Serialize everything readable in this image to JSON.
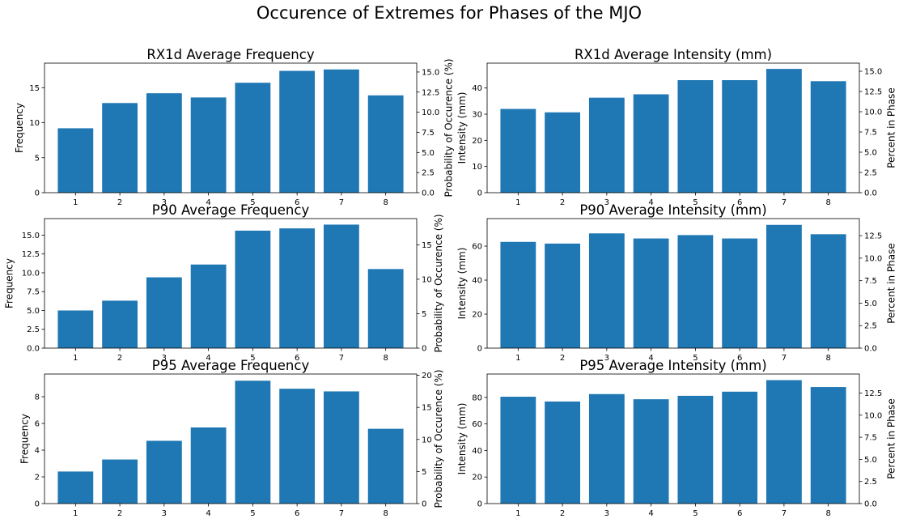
{
  "figure": {
    "title": "Occurence of Extremes for Phases of the MJO"
  },
  "colors": {
    "bar": "#1f77b4",
    "axis": "#000000",
    "background": "#ffffff"
  },
  "chart_data": [
    {
      "type": "bar",
      "title": "RX1d Average Frequency",
      "categories": [
        "1",
        "2",
        "3",
        "4",
        "5",
        "6",
        "7",
        "8"
      ],
      "values": [
        9.2,
        12.8,
        14.2,
        13.6,
        15.7,
        17.4,
        17.6,
        13.9
      ],
      "ylabel": "Frequency",
      "ylim": [
        0,
        18.5
      ],
      "yticks": [
        "0",
        "5",
        "10",
        "15"
      ],
      "y2label": "Probability of Occurence (%)",
      "y2lim": [
        0,
        16.1
      ],
      "y2ticks": [
        "0.0",
        "2.5",
        "5.0",
        "7.5",
        "10.0",
        "12.5",
        "15.0"
      ]
    },
    {
      "type": "bar",
      "title": "RX1d Average Intensity (mm)",
      "categories": [
        "1",
        "2",
        "3",
        "4",
        "5",
        "6",
        "7",
        "8"
      ],
      "values": [
        32.0,
        30.7,
        36.3,
        37.6,
        43.0,
        43.0,
        47.3,
        42.6
      ],
      "ylabel": "Intensity (mm)",
      "ylim": [
        0,
        49.5
      ],
      "yticks": [
        "0",
        "10",
        "20",
        "30",
        "40"
      ],
      "y2label": "Percent in Phase",
      "y2lim": [
        0,
        16.0
      ],
      "y2ticks": [
        "0.0",
        "2.5",
        "5.0",
        "7.5",
        "10.0",
        "12.5",
        "15.0"
      ]
    },
    {
      "type": "bar",
      "title": "P90 Average Frequency",
      "categories": [
        "1",
        "2",
        "3",
        "4",
        "5",
        "6",
        "7",
        "8"
      ],
      "values": [
        5.0,
        6.3,
        9.4,
        11.1,
        15.6,
        15.9,
        16.4,
        10.5
      ],
      "ylabel": "Frequency",
      "ylim": [
        0,
        17.2
      ],
      "yticks": [
        "0.0",
        "2.5",
        "5.0",
        "7.5",
        "10.0",
        "12.5",
        "15.0"
      ],
      "y2label": "Probability of Occurence (%)",
      "y2lim": [
        0,
        18.8
      ],
      "y2ticks": [
        "0",
        "5",
        "10",
        "15"
      ]
    },
    {
      "type": "bar",
      "title": "P90 Average Intensity (mm)",
      "categories": [
        "1",
        "2",
        "3",
        "4",
        "5",
        "6",
        "7",
        "8"
      ],
      "values": [
        62.5,
        61.5,
        67.5,
        64.5,
        66.5,
        64.5,
        72.5,
        67.0
      ],
      "ylabel": "Intensity (mm)",
      "ylim": [
        0,
        76.2
      ],
      "yticks": [
        "0",
        "20",
        "40",
        "60"
      ],
      "y2label": "Percent in Phase",
      "y2lim": [
        0,
        14.4
      ],
      "y2ticks": [
        "0.0",
        "2.5",
        "5.0",
        "7.5",
        "10.0",
        "12.5"
      ]
    },
    {
      "type": "bar",
      "title": "P95 Average Frequency",
      "categories": [
        "1",
        "2",
        "3",
        "4",
        "5",
        "6",
        "7",
        "8"
      ],
      "values": [
        2.4,
        3.3,
        4.7,
        5.7,
        9.2,
        8.6,
        8.4,
        5.6
      ],
      "ylabel": "Frequency",
      "ylim": [
        0,
        9.7
      ],
      "yticks": [
        "0",
        "2",
        "4",
        "6",
        "8"
      ],
      "y2label": "Probability of Occurence (%)",
      "y2lim": [
        0,
        20.2
      ],
      "y2ticks": [
        "0",
        "5",
        "10",
        "15",
        "20"
      ]
    },
    {
      "type": "bar",
      "title": "P95 Average Intensity (mm)",
      "categories": [
        "1",
        "2",
        "3",
        "4",
        "5",
        "6",
        "7",
        "8"
      ],
      "values": [
        80.5,
        76.9,
        82.5,
        78.6,
        81.2,
        84.3,
        93.0,
        87.8
      ],
      "ylabel": "Intensity (mm)",
      "ylim": [
        0,
        97.6
      ],
      "yticks": [
        "0",
        "20",
        "40",
        "60",
        "80"
      ],
      "y2label": "Percent in Phase",
      "y2lim": [
        0,
        14.65
      ],
      "y2ticks": [
        "0.0",
        "2.5",
        "5.0",
        "7.5",
        "10.0",
        "12.5"
      ]
    }
  ]
}
